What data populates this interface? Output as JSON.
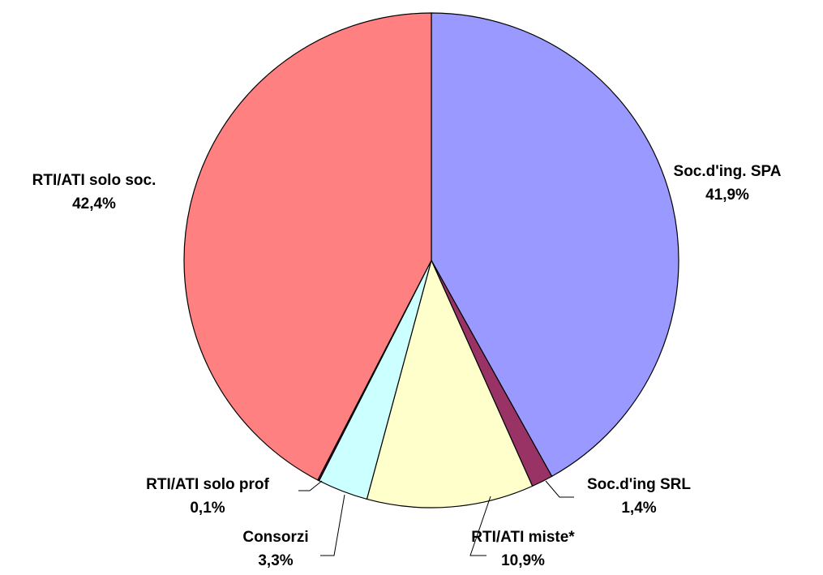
{
  "chart_data": {
    "type": "pie",
    "title": "",
    "legend": "none",
    "start": "top, clockwise",
    "slices": [
      {
        "label": "Soc.d'ing. SPA",
        "value": 41.9,
        "value_label": "41,9%",
        "color": "#9999FF"
      },
      {
        "label": "Soc.d'ing SRL",
        "value": 1.4,
        "value_label": "1,4%",
        "color": "#993366"
      },
      {
        "label": "RTI/ATI miste*",
        "value": 10.9,
        "value_label": "10,9%",
        "color": "#FFFFCC"
      },
      {
        "label": "Consorzi",
        "value": 3.3,
        "value_label": "3,3%",
        "color": "#CCFFFF"
      },
      {
        "label": "RTI/ATI solo prof",
        "value": 0.1,
        "value_label": "0,1%",
        "color": "#660066"
      },
      {
        "label": "RTI/ATI solo soc.",
        "value": 42.4,
        "value_label": "42,4%",
        "color": "#FF8080"
      }
    ]
  }
}
